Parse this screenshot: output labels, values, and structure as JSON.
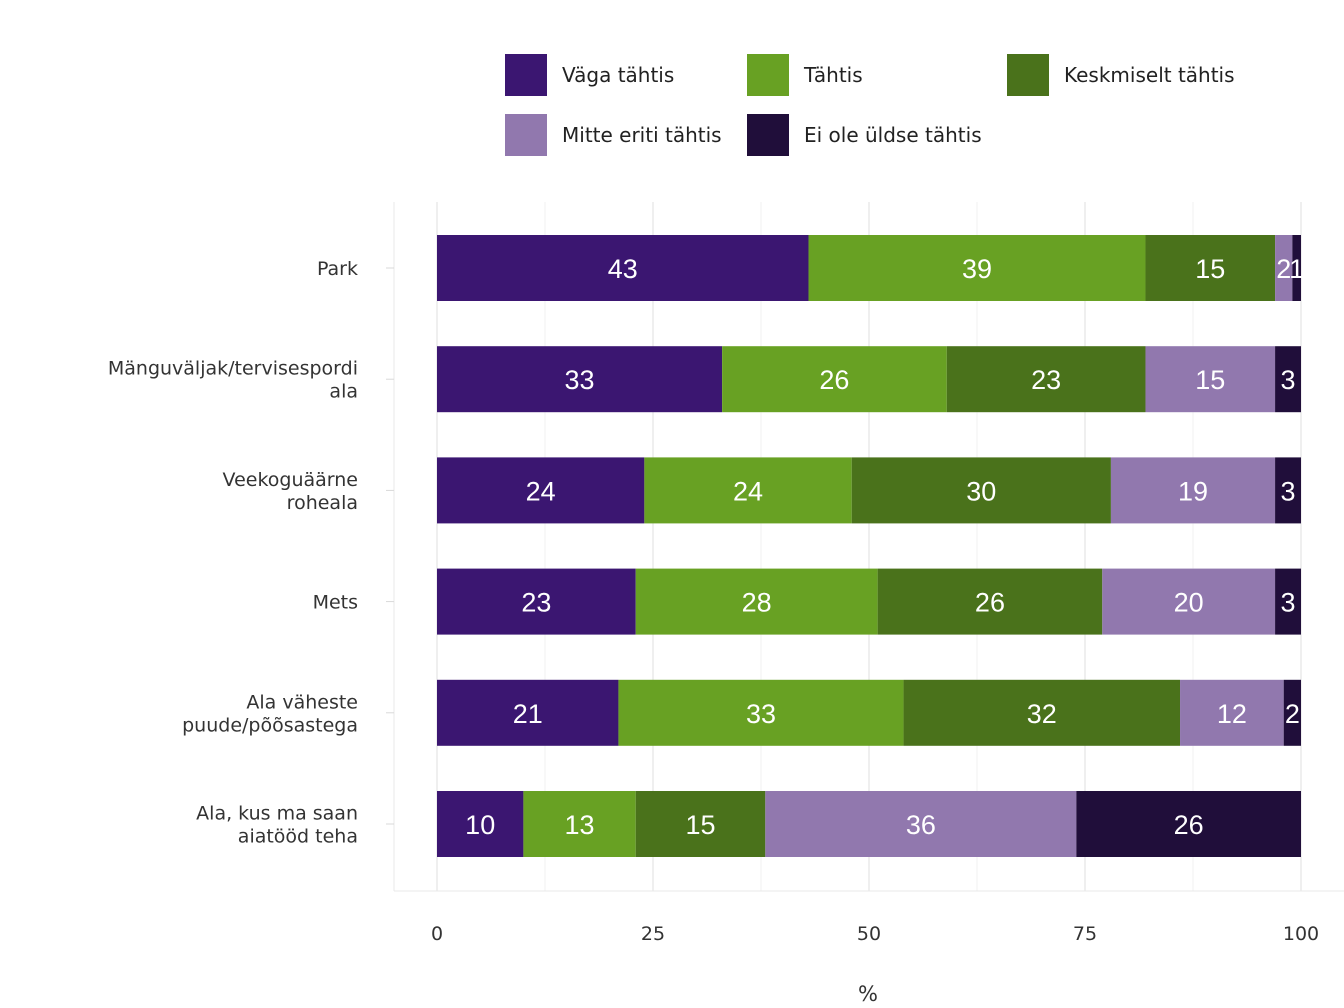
{
  "chart_data": {
    "type": "bar",
    "orientation": "horizontal",
    "stacked": true,
    "xlabel": "%",
    "xlim": [
      0,
      100
    ],
    "xticks": [
      0,
      25,
      50,
      75,
      100
    ],
    "grid": true,
    "legend_position": "top",
    "categories": [
      [
        "Park"
      ],
      [
        "Mänguväljak/tervisespordi",
        "ala"
      ],
      [
        "Veekoguäärne",
        "roheala"
      ],
      [
        "Mets"
      ],
      [
        "Ala väheste",
        "puude/põõsastega"
      ],
      [
        "Ala, kus ma saan",
        "aiatööd teha"
      ]
    ],
    "series": [
      {
        "name": "Väga tähtis",
        "color": "#3b1671",
        "values": [
          43,
          33,
          24,
          23,
          21,
          10
        ]
      },
      {
        "name": "Tähtis",
        "color": "#68a123",
        "values": [
          39,
          26,
          24,
          28,
          33,
          13
        ]
      },
      {
        "name": "Keskmiselt tähtis",
        "color": "#4a721b",
        "values": [
          15,
          23,
          30,
          26,
          32,
          15
        ]
      },
      {
        "name": "Mitte eriti tähtis",
        "color": "#9178ae",
        "values": [
          2,
          15,
          19,
          20,
          12,
          36
        ]
      },
      {
        "name": "Ei ole üldse tähtis",
        "color": "#200e3a",
        "values": [
          1,
          3,
          3,
          3,
          2,
          26
        ]
      }
    ],
    "value_labels": [
      [
        "43",
        "39",
        "15",
        "2",
        "1"
      ],
      [
        "33",
        "26",
        "23",
        "15",
        "3"
      ],
      [
        "24",
        "24",
        "30",
        "19",
        "3"
      ],
      [
        "23",
        "28",
        "26",
        "20",
        "3"
      ],
      [
        "21",
        "33",
        "32",
        "12",
        "2"
      ],
      [
        "10",
        "13",
        "15",
        "36",
        "26"
      ]
    ]
  }
}
